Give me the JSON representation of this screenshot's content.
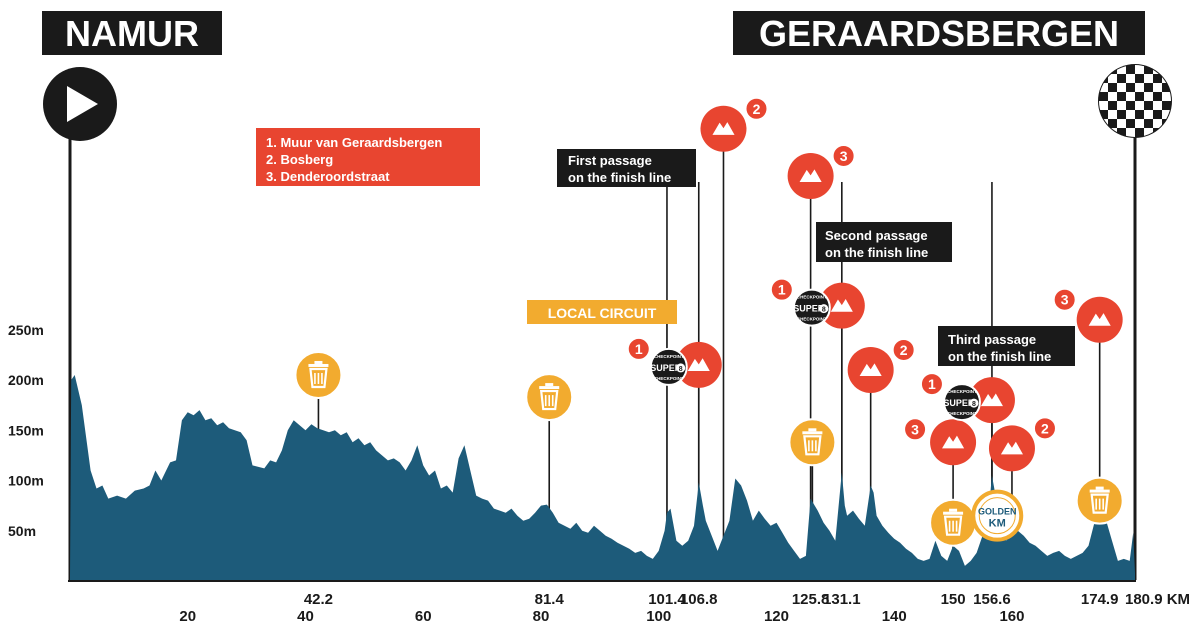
{
  "start_city": "NAMUR",
  "finish_city": "GERAARDSBERGEN",
  "climbs_legend": [
    "1. Muur van Geraardsbergen",
    "2. Bosberg",
    "3. Denderoordstraat"
  ],
  "passages": [
    {
      "line1": "First passage",
      "line2": "on the finish line"
    },
    {
      "line1": "Second passage",
      "line2": "on the finish line"
    },
    {
      "line1": "Third passage",
      "line2": "on the finish line"
    }
  ],
  "local_circuit_label": "LOCAL CIRCUIT",
  "golden_km": {
    "line1": "GOLDEN",
    "line2": "KM",
    "km": 157.5
  },
  "super8": {
    "top": "CHECKPOINT",
    "main": "SUPER",
    "digit": "8",
    "bottom": "CHECKPOINT"
  },
  "colors": {
    "profile": "#1d5b7a",
    "climb": "#e84530",
    "legend_bg": "#e84530",
    "feed": "#f2ab2f",
    "dark_box": "#1a1a1a",
    "golden": "#f2ab2f"
  },
  "chart_data": {
    "type": "area",
    "xlabel": "KM",
    "x_unit": "KM",
    "xlim": [
      0,
      180.9
    ],
    "ylim": [
      0,
      250
    ],
    "y_ticks": [
      {
        "value": 50,
        "label": "50m"
      },
      {
        "value": 100,
        "label": "100m"
      },
      {
        "value": 150,
        "label": "150m"
      },
      {
        "value": 200,
        "label": "200m"
      },
      {
        "value": 250,
        "label": "250m"
      }
    ],
    "x_ticks_major": [
      42.2,
      81.4,
      101.4,
      106.8,
      125.8,
      131.1,
      150,
      156.6,
      174.9,
      180.9
    ],
    "x_ticks_major_labels": [
      "42.2",
      "81.4",
      "101.4",
      "106.8",
      "125.8",
      "131.1",
      "150",
      "156.6",
      "174.9",
      "180.9 KM"
    ],
    "x_ticks_minor": [
      20,
      40,
      60,
      80,
      100,
      120,
      140,
      160
    ],
    "profile": [
      [
        0,
        5
      ],
      [
        0.2,
        200
      ],
      [
        0.8,
        205
      ],
      [
        2,
        175
      ],
      [
        3.5,
        110
      ],
      [
        4.5,
        92
      ],
      [
        5.5,
        95
      ],
      [
        6.5,
        82
      ],
      [
        8,
        85
      ],
      [
        9.5,
        82
      ],
      [
        11,
        90
      ],
      [
        12.5,
        92
      ],
      [
        13.5,
        95
      ],
      [
        14.5,
        110
      ],
      [
        15.5,
        100
      ],
      [
        17,
        118
      ],
      [
        18,
        120
      ],
      [
        19,
        160
      ],
      [
        20,
        168
      ],
      [
        21,
        165
      ],
      [
        22,
        170
      ],
      [
        23,
        160
      ],
      [
        24,
        162
      ],
      [
        25,
        155
      ],
      [
        26,
        158
      ],
      [
        27,
        152
      ],
      [
        28,
        150
      ],
      [
        29,
        148
      ],
      [
        30,
        140
      ],
      [
        31,
        115
      ],
      [
        33,
        112
      ],
      [
        34,
        120
      ],
      [
        35,
        118
      ],
      [
        36,
        130
      ],
      [
        37,
        150
      ],
      [
        38,
        160
      ],
      [
        39,
        155
      ],
      [
        40,
        150
      ],
      [
        41,
        156
      ],
      [
        42,
        152
      ],
      [
        43,
        150
      ],
      [
        44,
        148
      ],
      [
        45,
        150
      ],
      [
        46,
        145
      ],
      [
        47,
        148
      ],
      [
        48,
        138
      ],
      [
        49,
        142
      ],
      [
        50,
        135
      ],
      [
        51,
        138
      ],
      [
        52,
        130
      ],
      [
        53,
        125
      ],
      [
        54,
        120
      ],
      [
        55,
        122
      ],
      [
        56,
        118
      ],
      [
        57,
        110
      ],
      [
        58,
        120
      ],
      [
        59,
        135
      ],
      [
        60,
        115
      ],
      [
        61,
        105
      ],
      [
        62,
        110
      ],
      [
        63,
        92
      ],
      [
        64,
        95
      ],
      [
        65,
        88
      ],
      [
        66,
        122
      ],
      [
        67,
        135
      ],
      [
        68,
        110
      ],
      [
        69,
        85
      ],
      [
        70,
        82
      ],
      [
        71,
        80
      ],
      [
        72,
        72
      ],
      [
        73,
        70
      ],
      [
        74,
        68
      ],
      [
        75,
        72
      ],
      [
        76,
        65
      ],
      [
        77,
        60
      ],
      [
        78,
        62
      ],
      [
        79,
        68
      ],
      [
        80,
        75
      ],
      [
        81,
        76
      ],
      [
        82,
        68
      ],
      [
        83,
        58
      ],
      [
        84,
        55
      ],
      [
        85,
        52
      ],
      [
        86,
        58
      ],
      [
        87,
        50
      ],
      [
        88,
        48
      ],
      [
        89,
        55
      ],
      [
        90,
        50
      ],
      [
        91,
        45
      ],
      [
        92,
        42
      ],
      [
        93,
        38
      ],
      [
        94,
        35
      ],
      [
        95,
        32
      ],
      [
        96,
        28
      ],
      [
        97,
        30
      ],
      [
        98,
        25
      ],
      [
        99,
        22
      ],
      [
        100,
        30
      ],
      [
        101,
        50
      ],
      [
        101.4,
        68
      ],
      [
        102,
        72
      ],
      [
        103,
        40
      ],
      [
        104,
        35
      ],
      [
        105,
        40
      ],
      [
        106,
        55
      ],
      [
        106.8,
        98
      ],
      [
        107.5,
        75
      ],
      [
        108,
        60
      ],
      [
        109,
        45
      ],
      [
        110,
        30
      ],
      [
        111,
        45
      ],
      [
        112,
        60
      ],
      [
        113,
        102
      ],
      [
        114,
        95
      ],
      [
        115,
        80
      ],
      [
        116,
        60
      ],
      [
        117,
        70
      ],
      [
        118,
        62
      ],
      [
        119,
        55
      ],
      [
        120,
        58
      ],
      [
        121,
        48
      ],
      [
        122,
        38
      ],
      [
        123,
        30
      ],
      [
        124,
        22
      ],
      [
        125,
        25
      ],
      [
        125.8,
        82
      ],
      [
        126.5,
        75
      ],
      [
        127,
        70
      ],
      [
        128,
        58
      ],
      [
        129,
        50
      ],
      [
        130,
        40
      ],
      [
        131.1,
        108
      ],
      [
        131.6,
        75
      ],
      [
        132,
        65
      ],
      [
        133,
        70
      ],
      [
        134,
        62
      ],
      [
        135,
        55
      ],
      [
        136,
        95
      ],
      [
        136.5,
        88
      ],
      [
        137,
        65
      ],
      [
        138,
        55
      ],
      [
        139,
        48
      ],
      [
        140,
        42
      ],
      [
        141,
        38
      ],
      [
        142,
        32
      ],
      [
        143,
        28
      ],
      [
        144,
        22
      ],
      [
        145,
        20
      ],
      [
        146,
        22
      ],
      [
        147,
        40
      ],
      [
        148,
        25
      ],
      [
        149,
        20
      ],
      [
        150,
        35
      ],
      [
        151,
        30
      ],
      [
        152,
        15
      ],
      [
        153,
        20
      ],
      [
        154,
        28
      ],
      [
        155,
        45
      ],
      [
        156,
        65
      ],
      [
        156.6,
        105
      ],
      [
        157,
        92
      ],
      [
        158,
        55
      ],
      [
        159,
        40
      ],
      [
        160,
        55
      ],
      [
        161,
        50
      ],
      [
        162,
        45
      ],
      [
        163,
        38
      ],
      [
        164,
        35
      ],
      [
        165,
        30
      ],
      [
        166,
        25
      ],
      [
        167,
        28
      ],
      [
        168,
        30
      ],
      [
        169,
        25
      ],
      [
        170,
        22
      ],
      [
        171,
        25
      ],
      [
        172,
        28
      ],
      [
        173,
        35
      ],
      [
        174,
        58
      ],
      [
        174.9,
        72
      ],
      [
        175.5,
        68
      ],
      [
        176,
        60
      ],
      [
        177,
        40
      ],
      [
        178,
        20
      ],
      [
        179,
        22
      ],
      [
        180,
        20
      ],
      [
        180.6,
        48
      ],
      [
        180.9,
        8
      ]
    ],
    "markers": [
      {
        "km": 42.2,
        "type": "feed",
        "alt": 205
      },
      {
        "km": 81.4,
        "type": "feed",
        "alt": 183
      },
      {
        "km": 101.4,
        "type": "passage",
        "passage": 0
      },
      {
        "km": 106.8,
        "type": "climb",
        "alt": 215,
        "climb_num": 1,
        "super8": true
      },
      {
        "km": 106.8,
        "type": "passage",
        "passage": 0
      },
      {
        "km": 111,
        "type": "climb",
        "alt": 450,
        "climb_num": 2
      },
      {
        "km": 125.8,
        "type": "climb",
        "alt": 403,
        "climb_num": 3
      },
      {
        "km": 126.1,
        "type": "feed",
        "alt": 138
      },
      {
        "km": 131.1,
        "type": "climb",
        "alt": 274,
        "climb_num": 1,
        "super8": true
      },
      {
        "km": 131.1,
        "type": "passage",
        "passage": 1
      },
      {
        "km": 136,
        "type": "climb",
        "alt": 210,
        "climb_num": 2
      },
      {
        "km": 150,
        "type": "climb",
        "alt": 138,
        "climb_num": 3
      },
      {
        "km": 150,
        "type": "feed",
        "alt": 58
      },
      {
        "km": 156.6,
        "type": "climb",
        "alt": 180,
        "climb_num": 1,
        "super8": true
      },
      {
        "km": 156.6,
        "type": "passage",
        "passage": 2
      },
      {
        "km": 160,
        "type": "climb",
        "alt": 132,
        "climb_num": 2
      },
      {
        "km": 174.9,
        "type": "climb",
        "alt": 260,
        "climb_num": 3
      },
      {
        "km": 174.9,
        "type": "feed",
        "alt": 80
      },
      {
        "km": 157.5,
        "type": "golden",
        "alt": 65
      }
    ]
  }
}
